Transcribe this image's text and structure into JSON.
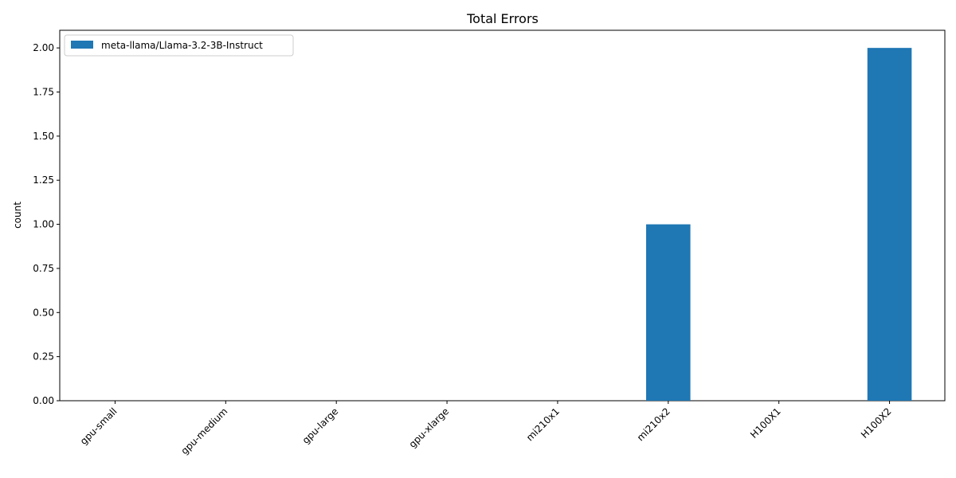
{
  "chart_data": {
    "type": "bar",
    "title": "Total Errors",
    "xlabel": "",
    "ylabel": "count",
    "categories": [
      "gpu-small",
      "gpu-medium",
      "gpu-large",
      "gpu-xlarge",
      "mi210x1",
      "mi210x2",
      "H100X1",
      "H100X2"
    ],
    "series": [
      {
        "name": "meta-llama/Llama-3.2-3B-Instruct",
        "color": "#1f77b4",
        "values": [
          0,
          0,
          0,
          0,
          0,
          1,
          0,
          2
        ]
      }
    ],
    "ylim": [
      0,
      2.1
    ],
    "yticks": [
      "0.00",
      "0.25",
      "0.50",
      "0.75",
      "1.00",
      "1.25",
      "1.50",
      "1.75",
      "2.00"
    ],
    "grid": false,
    "legend_position": "top-left"
  }
}
